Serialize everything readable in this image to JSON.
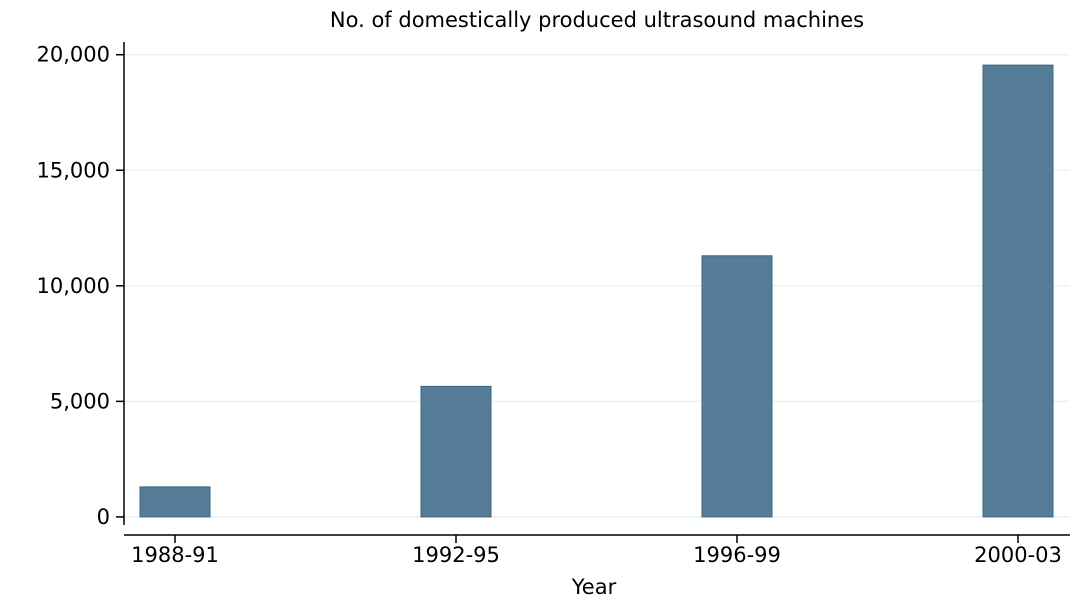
{
  "chart_data": {
    "type": "bar",
    "title": "No. of domestically produced ultrasound machines",
    "x_label": "Year",
    "categories": [
      "1988-91",
      "1992-95",
      "1996-99",
      "2000-03"
    ],
    "values": [
      1300,
      5650,
      11300,
      19550
    ],
    "color": "#557d97",
    "ylim": [
      -350,
      20550
    ],
    "yticks": [
      0,
      {
        "value": 5000,
        "label": "5,000"
      },
      {
        "value": 10000,
        "label": "10,000"
      },
      {
        "value": 15000,
        "label": "15,000"
      },
      {
        "value": 20000,
        "label": "20,000"
      }
    ],
    "grid": true
  }
}
